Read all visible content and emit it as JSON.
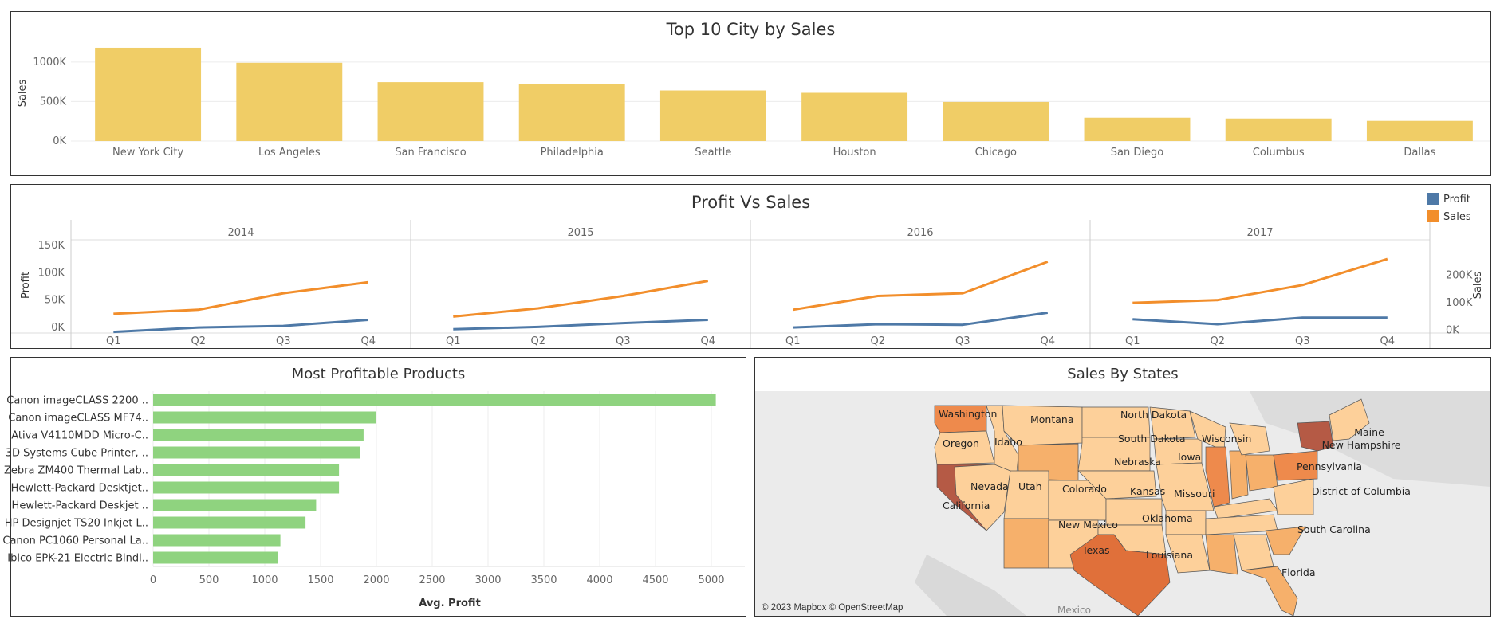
{
  "chart_data": [
    {
      "id": "top-cities",
      "type": "bar",
      "title": "Top 10 City by Sales",
      "ylabel": "Sales",
      "xlabel": "",
      "categories": [
        "New York City",
        "Los Angeles",
        "San Francisco",
        "Philadelphia",
        "Seattle",
        "Houston",
        "Chicago",
        "San Diego",
        "Columbus",
        "Dallas"
      ],
      "values": [
        1180000,
        990000,
        745000,
        720000,
        640000,
        610000,
        495000,
        295000,
        285000,
        255000
      ],
      "yticks": [
        {
          "v": 0,
          "label": "0K"
        },
        {
          "v": 500000,
          "label": "500K"
        },
        {
          "v": 1000000,
          "label": "1000K"
        }
      ],
      "ylim": [
        0,
        1230000
      ],
      "color": "#f0cd66",
      "grid": true
    },
    {
      "id": "profit-vs-sales",
      "type": "line",
      "title": "Profit Vs Sales",
      "panels": [
        "2014",
        "2015",
        "2016",
        "2017"
      ],
      "categories": [
        "Q1",
        "Q2",
        "Q3",
        "Q4"
      ],
      "ylabel_left": "Profit",
      "ylabel_right": "Sales",
      "left_ticks": [
        {
          "v": 0,
          "label": "0K"
        },
        {
          "v": 50000,
          "label": "50K"
        },
        {
          "v": 100000,
          "label": "100K"
        },
        {
          "v": 150000,
          "label": "150K"
        }
      ],
      "right_ticks": [
        {
          "v": 0,
          "label": "0K"
        },
        {
          "v": 100000,
          "label": "100K"
        },
        {
          "v": 200000,
          "label": "200K"
        }
      ],
      "left_ylim": [
        -10000,
        160000
      ],
      "right_ylim": [
        -10000,
        330000
      ],
      "legend_position": "top-right",
      "series": [
        {
          "name": "Profit",
          "axis": "left",
          "color": "#4e79a7",
          "values": [
            [
              -8000,
              0,
              3000,
              14000
            ],
            [
              -3000,
              1000,
              8000,
              14000
            ],
            [
              0,
              6000,
              5000,
              27000
            ],
            [
              15000,
              6000,
              18000,
              18000
            ]
          ]
        },
        {
          "name": "Sales",
          "axis": "right",
          "color": "#f28e2b",
          "values": [
            [
              60000,
              75000,
              135000,
              175000
            ],
            [
              50000,
              80000,
              125000,
              180000
            ],
            [
              75000,
              125000,
              135000,
              250000
            ],
            [
              100000,
              110000,
              165000,
              260000
            ]
          ]
        }
      ]
    },
    {
      "id": "profitable-products",
      "type": "bar",
      "orientation": "horizontal",
      "title": "Most Profitable Products",
      "xlabel": "Avg. Profit",
      "categories": [
        "Canon imageCLASS 2200 ..",
        "Canon imageCLASS MF74..",
        "Ativa V4110MDD Micro-C..",
        "3D Systems Cube Printer, ..",
        "Zebra ZM400 Thermal Lab..",
        "Hewlett-Packard Desktjet..",
        "Hewlett-Packard Deskjet ..",
        "HP Designjet TS20 Inkjet L..",
        "Canon PC1060 Personal La..",
        "Ibico EPK-21 Electric Bindi.."
      ],
      "values": [
        5040,
        2000,
        1885,
        1855,
        1665,
        1665,
        1460,
        1365,
        1140,
        1115
      ],
      "xticks": [
        0,
        500,
        1000,
        1500,
        2000,
        2500,
        3000,
        3500,
        4000,
        4500,
        5000
      ],
      "xlim": [
        0,
        5300
      ],
      "color": "#8fd37f",
      "grid": true
    },
    {
      "id": "sales-by-states",
      "type": "map",
      "title": "Sales By States",
      "attribution": "© 2023 Mapbox © OpenStreetMap",
      "basemap_label": "Mexico",
      "scale_colors": [
        "#fdd09a",
        "#f6b06b",
        "#ee8a4c",
        "#e0703a",
        "#b55a45"
      ],
      "state_labels": [
        "Washington",
        "Montana",
        "North Dakota",
        "Oregon",
        "Idaho",
        "South Dakota",
        "Wisconsin",
        "Maine",
        "New Hampshire",
        "Nebraska",
        "Iowa",
        "Pennsylvania",
        "Nevada",
        "Utah",
        "Colorado",
        "Kansas",
        "Missouri",
        "District of Columbia",
        "California",
        "Oklahoma",
        "New Mexico",
        "South Carolina",
        "Texas",
        "Louisiana",
        "Florida"
      ]
    }
  ]
}
